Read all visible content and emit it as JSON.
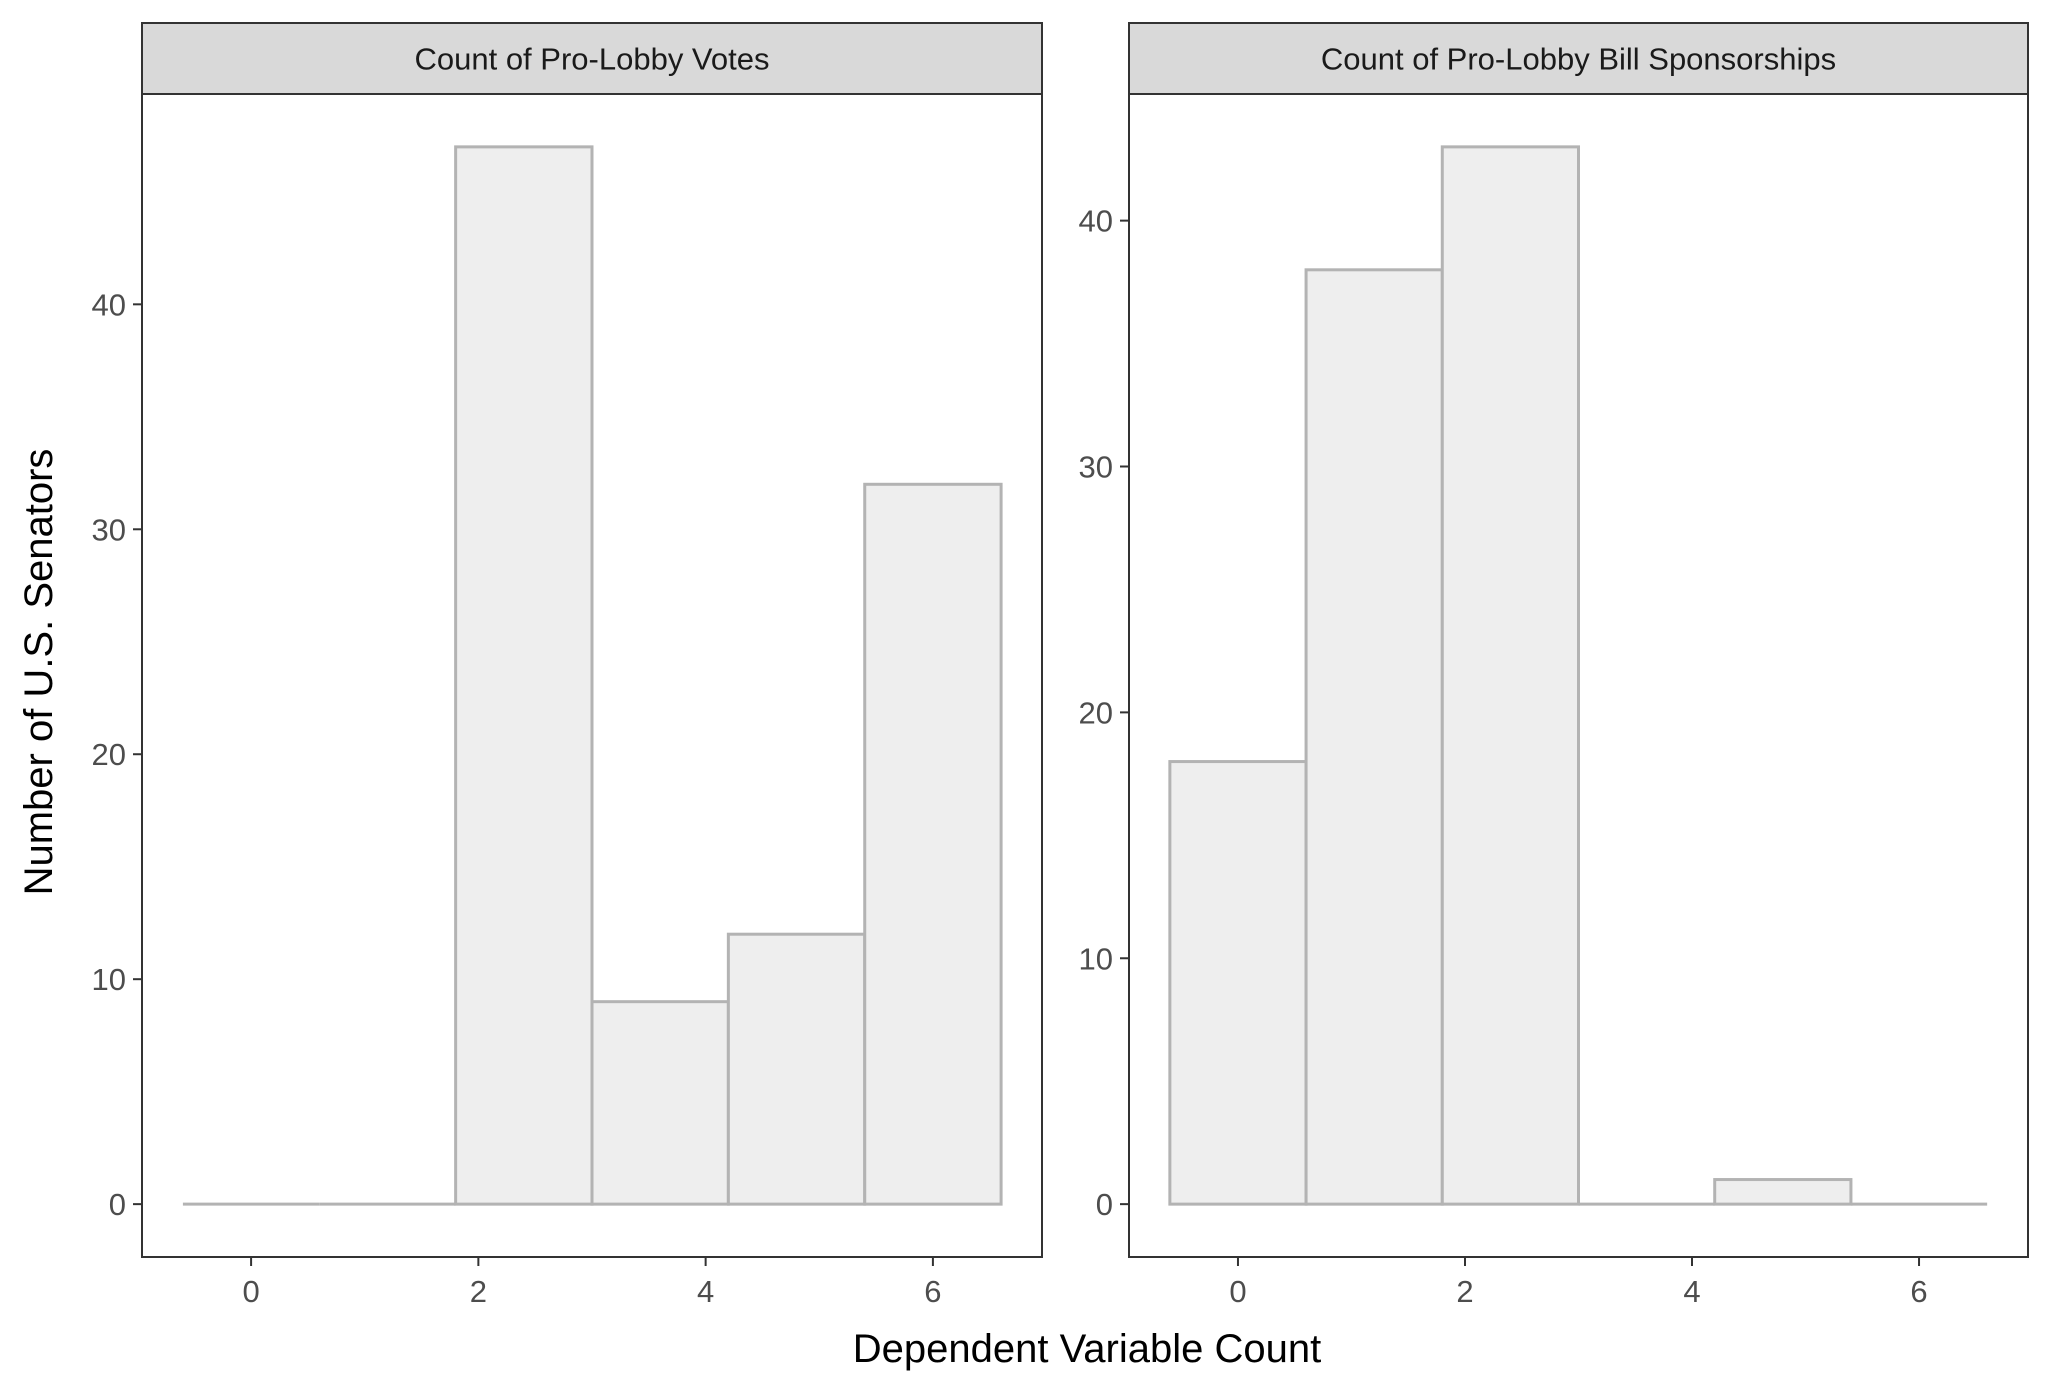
{
  "chart_data": {
    "type": "bar",
    "subtype": "histogram-facets",
    "xlabel": "Dependent Variable Count",
    "ylabel": "Number of U.S. Senators",
    "grid": false,
    "legend": "none",
    "colors": {
      "bar_fill": "#eeeeee",
      "bar_stroke": "#b3b3b3",
      "strip_fill": "#d9d9d9",
      "panel_border": "#333333"
    },
    "panels": [
      {
        "title": "Count of Pro-Lobby Votes",
        "xlim": [
          -0.96,
          6.96
        ],
        "ylim": [
          -2.35,
          49.35
        ],
        "xticks": [
          0,
          2,
          4,
          6
        ],
        "yticks": [
          0,
          10,
          20,
          30,
          40
        ],
        "bins": [
          {
            "x0": -0.6,
            "x1": 0.6,
            "value": 0
          },
          {
            "x0": 0.6,
            "x1": 1.8,
            "value": 0
          },
          {
            "x0": 1.8,
            "x1": 3.0,
            "value": 47
          },
          {
            "x0": 3.0,
            "x1": 4.2,
            "value": 9
          },
          {
            "x0": 4.2,
            "x1": 5.4,
            "value": 12
          },
          {
            "x0": 5.4,
            "x1": 6.6,
            "value": 32
          }
        ]
      },
      {
        "title": "Count of Pro-Lobby Bill Sponsorships",
        "xlim": [
          -0.96,
          6.96
        ],
        "ylim": [
          -2.15,
          45.15
        ],
        "xticks": [
          0,
          2,
          4,
          6
        ],
        "yticks": [
          0,
          10,
          20,
          30,
          40
        ],
        "bins": [
          {
            "x0": -0.6,
            "x1": 0.6,
            "value": 18
          },
          {
            "x0": 0.6,
            "x1": 1.8,
            "value": 38
          },
          {
            "x0": 1.8,
            "x1": 3.0,
            "value": 43
          },
          {
            "x0": 3.0,
            "x1": 4.2,
            "value": 0
          },
          {
            "x0": 4.2,
            "x1": 5.4,
            "value": 1
          },
          {
            "x0": 5.4,
            "x1": 6.6,
            "value": 0
          }
        ]
      }
    ]
  }
}
